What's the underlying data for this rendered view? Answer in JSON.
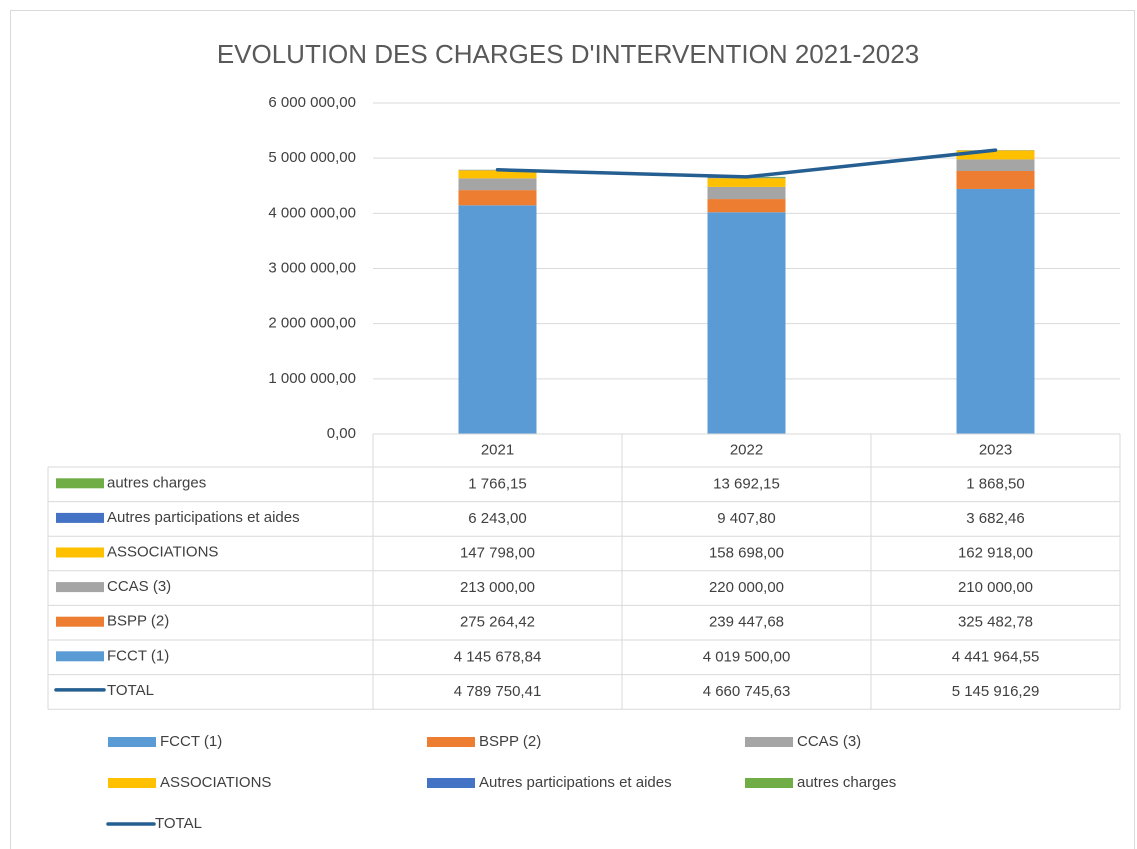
{
  "chart_data": {
    "type": "stacked_bar_line",
    "title": "EVOLUTION DES CHARGES D'INTERVENTION 2021-2023",
    "categories": [
      "2021",
      "2022",
      "2023"
    ],
    "ylim": [
      0,
      6000000
    ],
    "yticks": [
      {
        "value": 0,
        "label": "0,00"
      },
      {
        "value": 1000000,
        "label": "1 000 000,00"
      },
      {
        "value": 2000000,
        "label": "2 000 000,00"
      },
      {
        "value": 3000000,
        "label": "3 000 000,00"
      },
      {
        "value": 4000000,
        "label": "4 000 000,00"
      },
      {
        "value": 5000000,
        "label": "5 000 000,00"
      },
      {
        "value": 6000000,
        "label": "6 000 000,00"
      }
    ],
    "grid": true,
    "legend": "bottom",
    "series": [
      {
        "name": "FCCT (1)",
        "color": "#5b9bd5",
        "values": [
          4145678.84,
          4019500.0,
          4441964.55
        ],
        "value_labels": [
          "4 145 678,84",
          "4 019 500,00",
          "4 441 964,55"
        ]
      },
      {
        "name": "BSPP (2)",
        "color": "#ed7d31",
        "values": [
          275264.42,
          239447.68,
          325482.78
        ],
        "value_labels": [
          "275 264,42",
          "239 447,68",
          "325 482,78"
        ]
      },
      {
        "name": "CCAS (3)",
        "color": "#a5a5a5",
        "values": [
          213000.0,
          220000.0,
          210000.0
        ],
        "value_labels": [
          "213 000,00",
          "220 000,00",
          "210 000,00"
        ]
      },
      {
        "name": "ASSOCIATIONS",
        "color": "#ffc000",
        "values": [
          147798.0,
          158698.0,
          162918.0
        ],
        "value_labels": [
          "147 798,00",
          "158 698,00",
          "162 918,00"
        ]
      },
      {
        "name": "Autres participations et aides",
        "color": "#4472c4",
        "values": [
          6243.0,
          9407.8,
          3682.46
        ],
        "value_labels": [
          "6 243,00",
          "9 407,80",
          "3 682,46"
        ]
      },
      {
        "name": "autres charges",
        "color": "#70ad47",
        "values": [
          1766.15,
          13692.15,
          1868.5
        ],
        "value_labels": [
          "1 766,15",
          "13 692,15",
          "1 868,50"
        ]
      },
      {
        "name": "TOTAL",
        "color": "#255e91",
        "kind": "line",
        "values": [
          4789750.41,
          4660745.63,
          5145916.29
        ],
        "value_labels": [
          "4 789 750,41",
          "4 660 745,63",
          "5 145 916,29"
        ]
      }
    ]
  }
}
